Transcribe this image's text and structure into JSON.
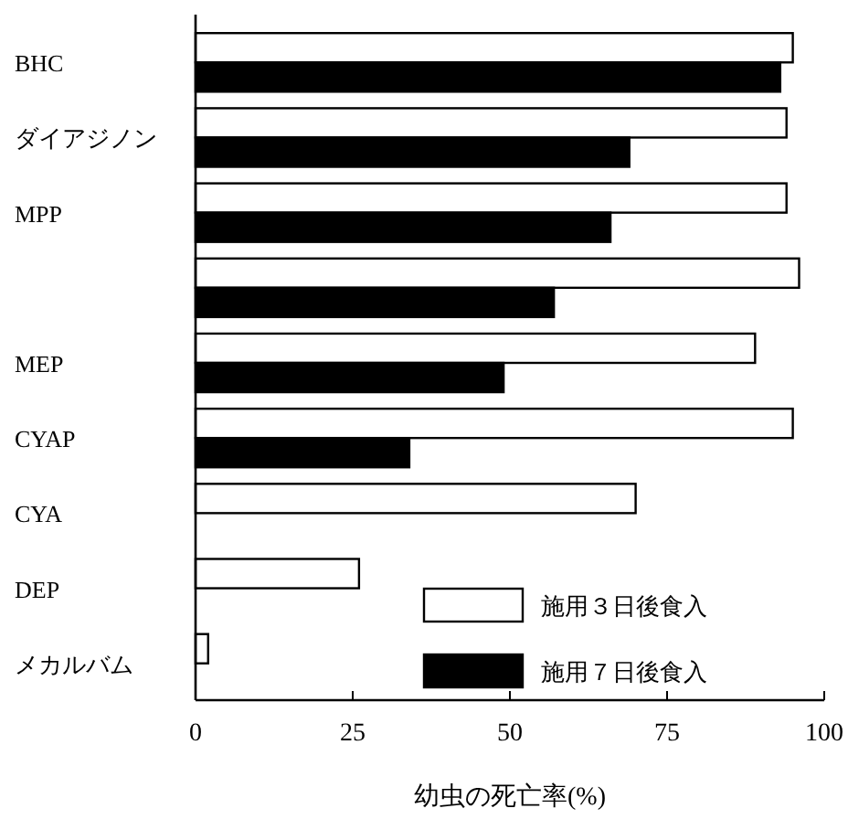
{
  "chart_data": {
    "type": "bar",
    "orientation": "horizontal",
    "xlabel": "幼虫の死亡率(%)",
    "categories": [
      "BHC",
      "ダイアジノン",
      "MPP",
      null,
      "MEP",
      "CYAP",
      "CYA",
      "DEP",
      "メカルバム"
    ],
    "series": [
      {
        "name": "施用３日後食入",
        "color": "#ffffff",
        "values": [
          95,
          94,
          94,
          96,
          89,
          95,
          70,
          26,
          2
        ]
      },
      {
        "name": "施用７日後食入",
        "color": "#000000",
        "values": [
          93,
          69,
          66,
          57,
          49,
          34,
          null,
          null,
          null
        ]
      }
    ],
    "xlim": [
      0,
      100
    ],
    "xticks": [
      0,
      25,
      50,
      75,
      100
    ],
    "legend": "bottom right",
    "grid": false
  }
}
